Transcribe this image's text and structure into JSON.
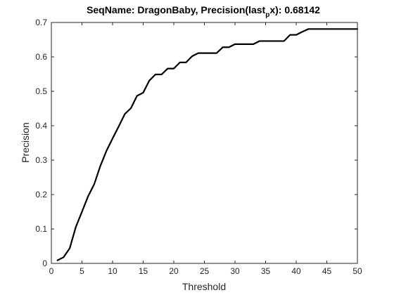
{
  "chart_data": {
    "type": "line",
    "title_main": "SeqName: DragonBaby, Precision(last",
    "title_sub": "p",
    "title_tail": "x): 0.68142",
    "xlabel": "Threshold",
    "ylabel": "Precision",
    "xlim": [
      0,
      50
    ],
    "ylim": [
      0,
      0.7
    ],
    "xticks": [
      0,
      5,
      10,
      15,
      20,
      25,
      30,
      35,
      40,
      45,
      50
    ],
    "yticks": [
      0,
      0.1,
      0.2,
      0.3,
      0.4,
      0.5,
      0.6,
      0.7
    ],
    "grid": false,
    "line_color": "#000000",
    "series": [
      {
        "x": [
          1,
          2,
          3,
          4,
          5,
          6,
          7,
          8,
          9,
          10,
          11,
          12,
          13,
          14,
          15,
          16,
          17,
          18,
          19,
          20,
          21,
          22,
          23,
          24,
          25,
          26,
          27,
          28,
          29,
          30,
          31,
          32,
          33,
          34,
          35,
          36,
          37,
          38,
          39,
          40,
          41,
          42,
          43,
          44,
          45,
          46,
          47,
          48,
          49,
          50
        ],
        "y": [
          0.009,
          0.018,
          0.044,
          0.106,
          0.15,
          0.195,
          0.23,
          0.283,
          0.327,
          0.363,
          0.398,
          0.434,
          0.451,
          0.487,
          0.496,
          0.531,
          0.549,
          0.549,
          0.566,
          0.566,
          0.584,
          0.584,
          0.602,
          0.611,
          0.611,
          0.611,
          0.611,
          0.628,
          0.628,
          0.637,
          0.637,
          0.637,
          0.637,
          0.646,
          0.646,
          0.646,
          0.646,
          0.646,
          0.664,
          0.664,
          0.673,
          0.681,
          0.681,
          0.681,
          0.681,
          0.681,
          0.681,
          0.681,
          0.681,
          0.681
        ]
      }
    ]
  }
}
